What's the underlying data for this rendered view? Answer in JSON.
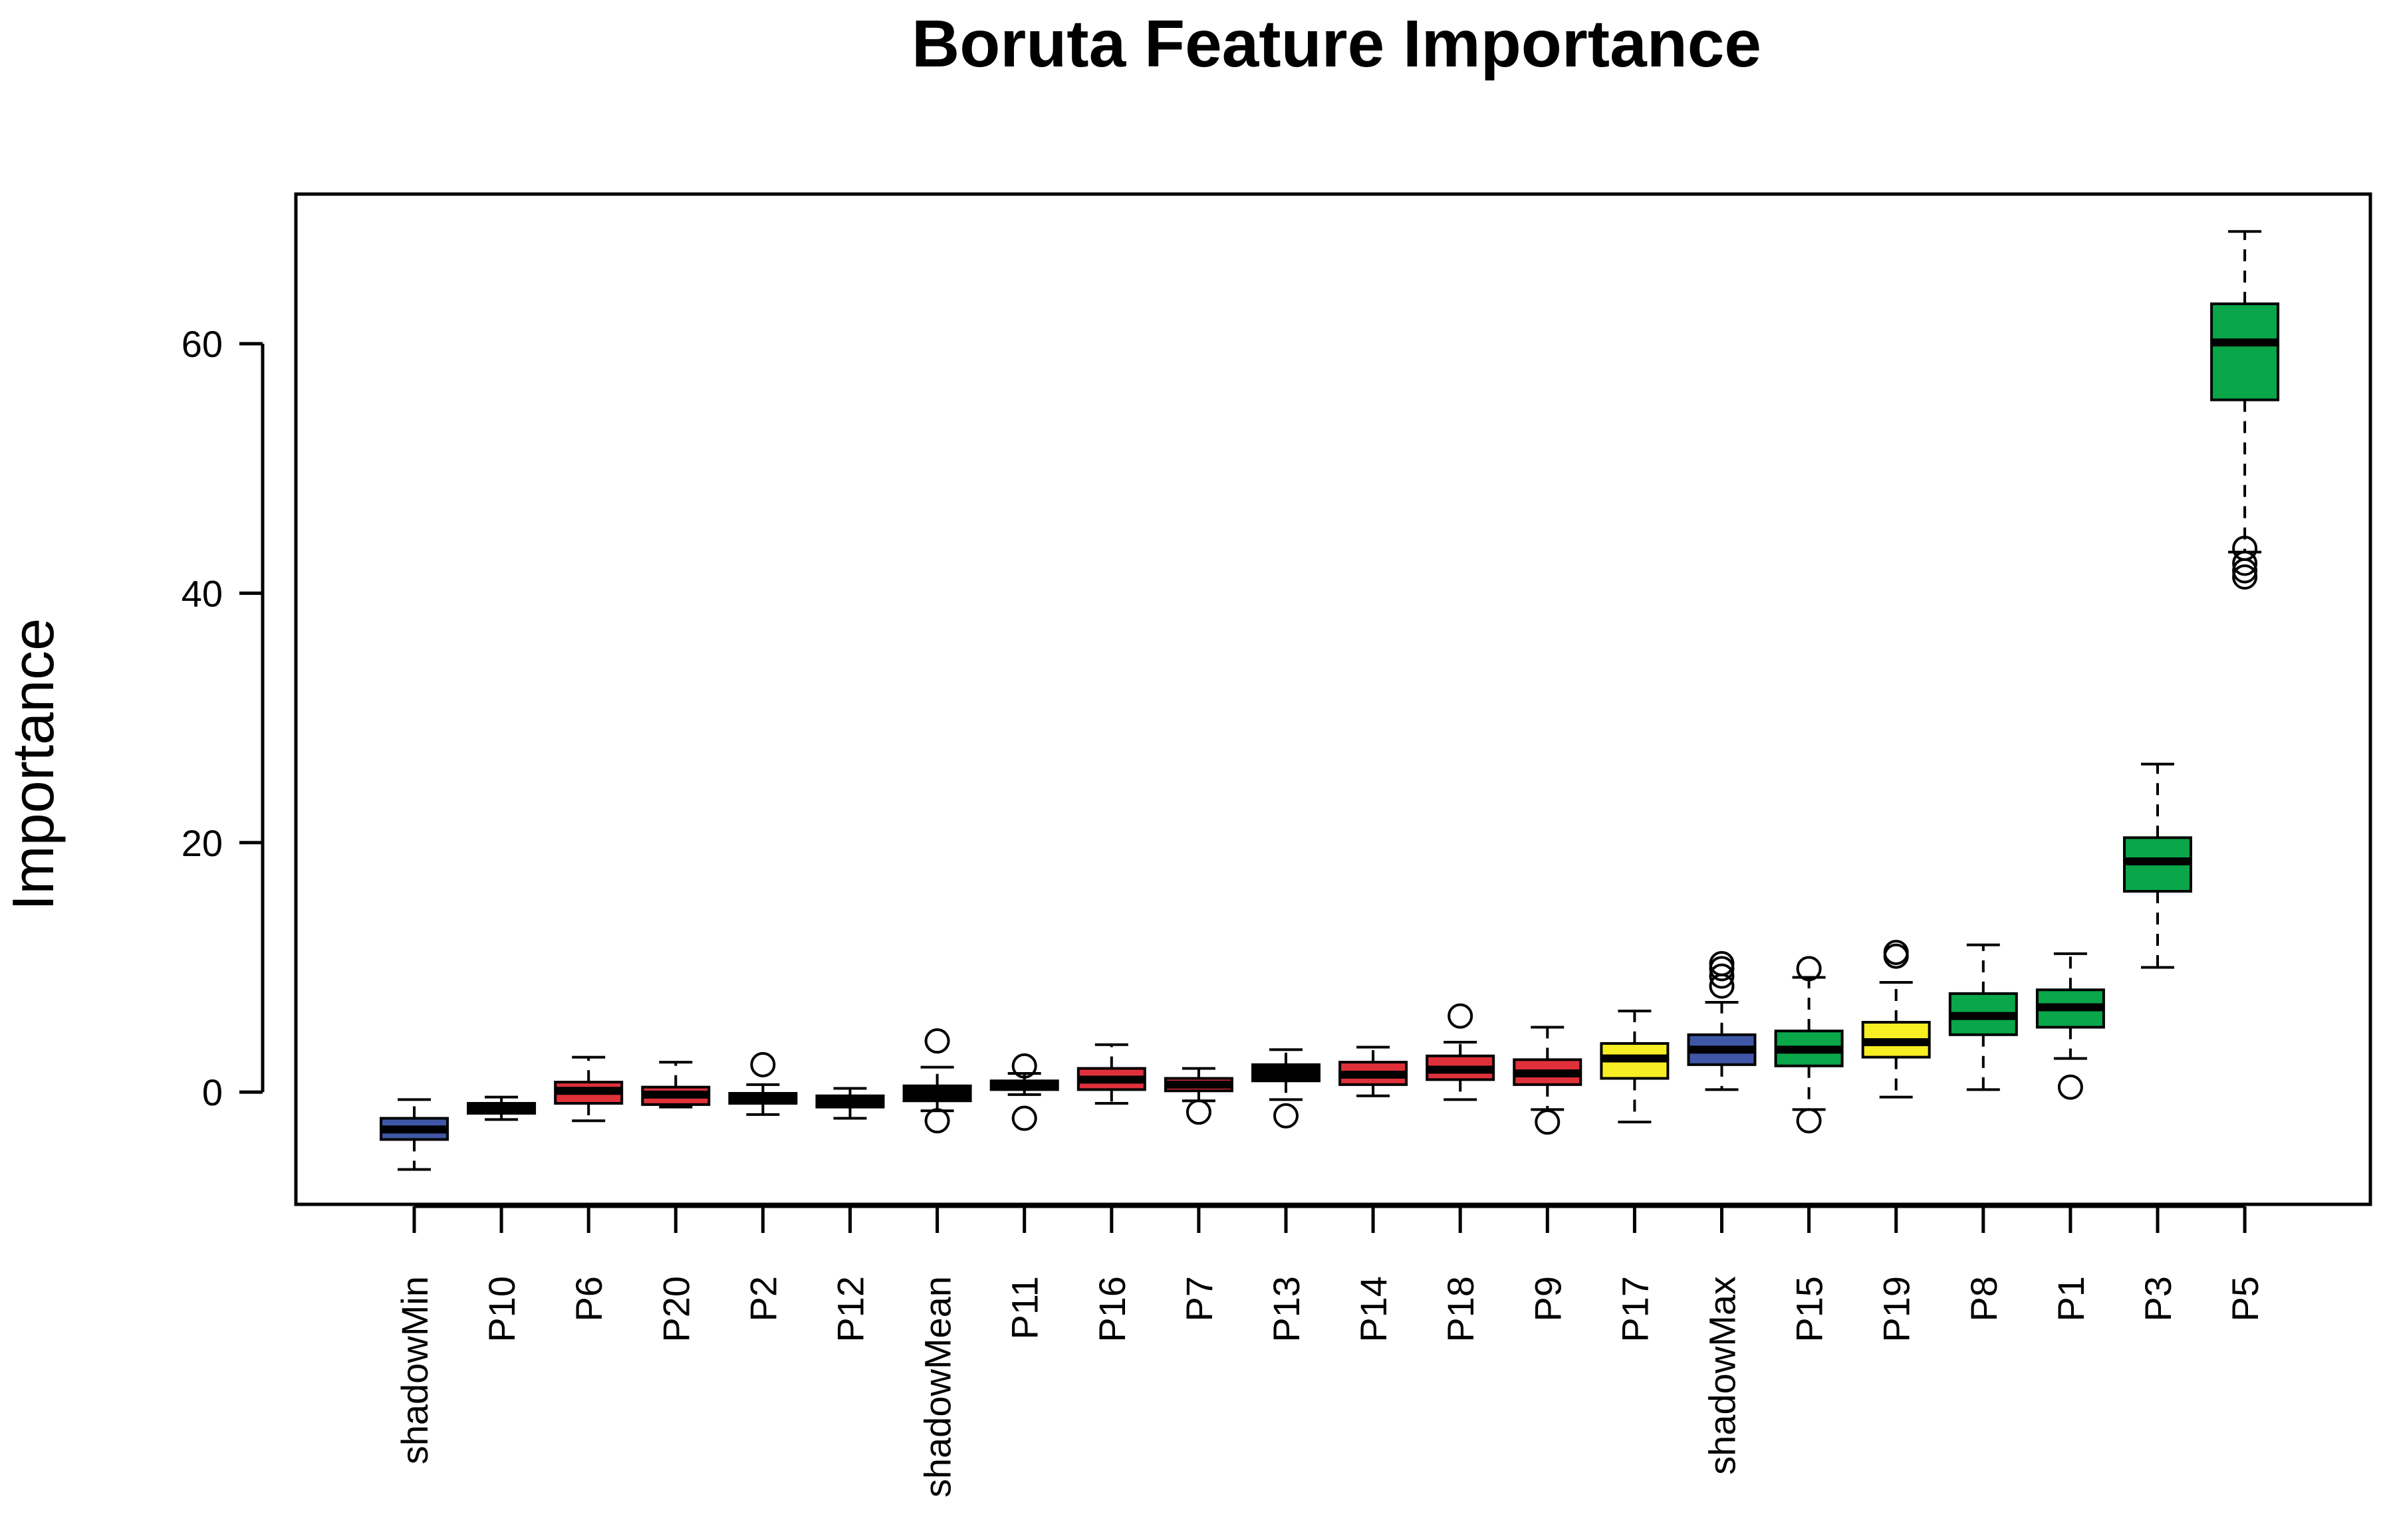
{
  "chart_data": {
    "type": "boxplot",
    "title": "Boruta Feature Importance",
    "xlabel": "",
    "ylabel": "Importance",
    "ylim": [
      -9,
      72
    ],
    "yticks": [
      0,
      20,
      40,
      60
    ],
    "grid": false,
    "legend": "none",
    "colors": {
      "shadow": "#3f57a6",
      "rejected": "#e0313b",
      "tentative": "#f7ee23",
      "confirmed": "#0aa64a",
      "black": "#000000"
    },
    "boxes": [
      {
        "label": "shadowMin",
        "color": "shadow",
        "min": -6.2,
        "q1": -3.8,
        "median": -3.0,
        "q3": -2.1,
        "max": -0.6,
        "outliers": []
      },
      {
        "label": "P10",
        "color": "black",
        "min": -2.2,
        "q1": -1.7,
        "median": -1.3,
        "q3": -0.9,
        "max": -0.4,
        "outliers": []
      },
      {
        "label": "P6",
        "color": "rejected",
        "min": -2.3,
        "q1": -0.9,
        "median": 0.1,
        "q3": 0.8,
        "max": 2.8,
        "outliers": []
      },
      {
        "label": "P20",
        "color": "rejected",
        "min": -1.2,
        "q1": -1.0,
        "median": -0.2,
        "q3": 0.4,
        "max": 2.4,
        "outliers": []
      },
      {
        "label": "P2",
        "color": "black",
        "min": -1.8,
        "q1": -0.9,
        "median": -0.4,
        "q3": -0.1,
        "max": 0.6,
        "outliers": [
          2.2
        ]
      },
      {
        "label": "P12",
        "color": "black",
        "min": -2.1,
        "q1": -1.2,
        "median": -0.7,
        "q3": -0.3,
        "max": 0.3,
        "outliers": []
      },
      {
        "label": "shadowMean",
        "color": "black",
        "min": -1.5,
        "q1": -0.7,
        "median": -0.1,
        "q3": 0.5,
        "max": 2.0,
        "outliers": [
          4.1,
          -2.3
        ]
      },
      {
        "label": "P11",
        "color": "black",
        "min": -0.2,
        "q1": 0.2,
        "median": 0.5,
        "q3": 0.9,
        "max": 1.5,
        "outliers": [
          2.1,
          -2.1
        ]
      },
      {
        "label": "P16",
        "color": "rejected",
        "min": -0.9,
        "q1": 0.2,
        "median": 1.0,
        "q3": 1.9,
        "max": 3.8,
        "outliers": []
      },
      {
        "label": "P7",
        "color": "rejected",
        "min": -0.7,
        "q1": 0.1,
        "median": 0.6,
        "q3": 1.1,
        "max": 1.9,
        "outliers": [
          -1.6
        ]
      },
      {
        "label": "P13",
        "color": "black",
        "min": -0.6,
        "q1": 0.9,
        "median": 1.5,
        "q3": 2.2,
        "max": 3.4,
        "outliers": [
          -1.9
        ]
      },
      {
        "label": "P14",
        "color": "rejected",
        "min": -0.3,
        "q1": 0.6,
        "median": 1.4,
        "q3": 2.4,
        "max": 3.6,
        "outliers": []
      },
      {
        "label": "P18",
        "color": "rejected",
        "min": -0.6,
        "q1": 1.0,
        "median": 1.8,
        "q3": 2.9,
        "max": 4.0,
        "outliers": [
          6.1
        ]
      },
      {
        "label": "P9",
        "color": "rejected",
        "min": -1.4,
        "q1": 0.6,
        "median": 1.5,
        "q3": 2.6,
        "max": 5.2,
        "outliers": [
          -2.4
        ]
      },
      {
        "label": "P17",
        "color": "tentative",
        "min": -2.4,
        "q1": 1.1,
        "median": 2.7,
        "q3": 3.9,
        "max": 6.5,
        "outliers": []
      },
      {
        "label": "shadowMax",
        "color": "shadow",
        "min": 0.2,
        "q1": 2.2,
        "median": 3.4,
        "q3": 4.6,
        "max": 7.2,
        "outliers": [
          8.5,
          9.3,
          9.9,
          10.3
        ]
      },
      {
        "label": "P15",
        "color": "confirmed",
        "min": -1.4,
        "q1": 2.1,
        "median": 3.4,
        "q3": 4.9,
        "max": 9.2,
        "outliers": [
          9.9,
          -2.3
        ]
      },
      {
        "label": "P19",
        "color": "tentative",
        "min": -0.4,
        "q1": 2.8,
        "median": 4.0,
        "q3": 5.6,
        "max": 8.8,
        "outliers": [
          10.9,
          11.2
        ]
      },
      {
        "label": "P8",
        "color": "confirmed",
        "min": 0.2,
        "q1": 4.6,
        "median": 6.1,
        "q3": 7.9,
        "max": 11.8,
        "outliers": []
      },
      {
        "label": "P1",
        "color": "confirmed",
        "min": 2.7,
        "q1": 5.2,
        "median": 6.8,
        "q3": 8.2,
        "max": 11.1,
        "outliers": [
          0.4
        ]
      },
      {
        "label": "P3",
        "color": "confirmed",
        "min": 10.0,
        "q1": 16.1,
        "median": 18.5,
        "q3": 20.4,
        "max": 26.3,
        "outliers": []
      },
      {
        "label": "P5",
        "color": "confirmed",
        "min": 43.3,
        "q1": 55.5,
        "median": 60.1,
        "q3": 63.2,
        "max": 69.0,
        "outliers": [
          43.6,
          42.4,
          41.8,
          41.3
        ]
      }
    ]
  }
}
